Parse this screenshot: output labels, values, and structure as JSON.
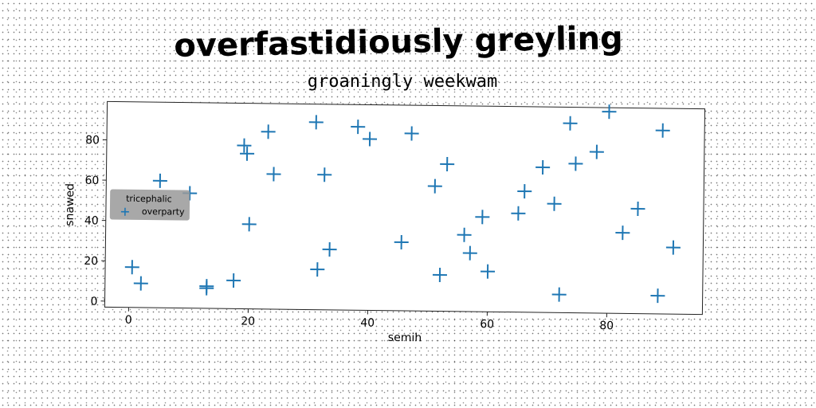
{
  "chart_data": {
    "type": "scatter",
    "title": "overfastidiously greyling",
    "subtitle": "groaningly weekwam",
    "xlabel": "semih",
    "ylabel": "snawed",
    "xlim": [
      -4,
      96
    ],
    "ylim": [
      -3,
      99
    ],
    "xticks": [
      0,
      20,
      40,
      60,
      80
    ],
    "yticks": [
      0,
      20,
      40,
      60,
      80
    ],
    "legend": {
      "title": "tricephalic",
      "position": "center-left"
    },
    "marker_color": "#1f77b4",
    "series": [
      {
        "name": "overparty",
        "marker": "plus",
        "points": [
          [
            0.5,
            17
          ],
          [
            2,
            9
          ],
          [
            5,
            60
          ],
          [
            10,
            54
          ],
          [
            13,
            8
          ],
          [
            13,
            7
          ],
          [
            17.5,
            11
          ],
          [
            19,
            78
          ],
          [
            19.5,
            74
          ],
          [
            20,
            39
          ],
          [
            23,
            85
          ],
          [
            24,
            64
          ],
          [
            31,
            90
          ],
          [
            31.5,
            17
          ],
          [
            32.5,
            64
          ],
          [
            33.5,
            27
          ],
          [
            38,
            88
          ],
          [
            40,
            82
          ],
          [
            45.5,
            31
          ],
          [
            47,
            85
          ],
          [
            51,
            59
          ],
          [
            52,
            15
          ],
          [
            53,
            70
          ],
          [
            56,
            35
          ],
          [
            57,
            26
          ],
          [
            59,
            44
          ],
          [
            60,
            17
          ],
          [
            65,
            46
          ],
          [
            66,
            57
          ],
          [
            69,
            69
          ],
          [
            71,
            51
          ],
          [
            72,
            6
          ],
          [
            73.5,
            91
          ],
          [
            74.5,
            71
          ],
          [
            78,
            77
          ],
          [
            80,
            97
          ],
          [
            82.5,
            37
          ],
          [
            85,
            49
          ],
          [
            88.5,
            6
          ],
          [
            89,
            88
          ],
          [
            91,
            30
          ]
        ]
      }
    ]
  }
}
